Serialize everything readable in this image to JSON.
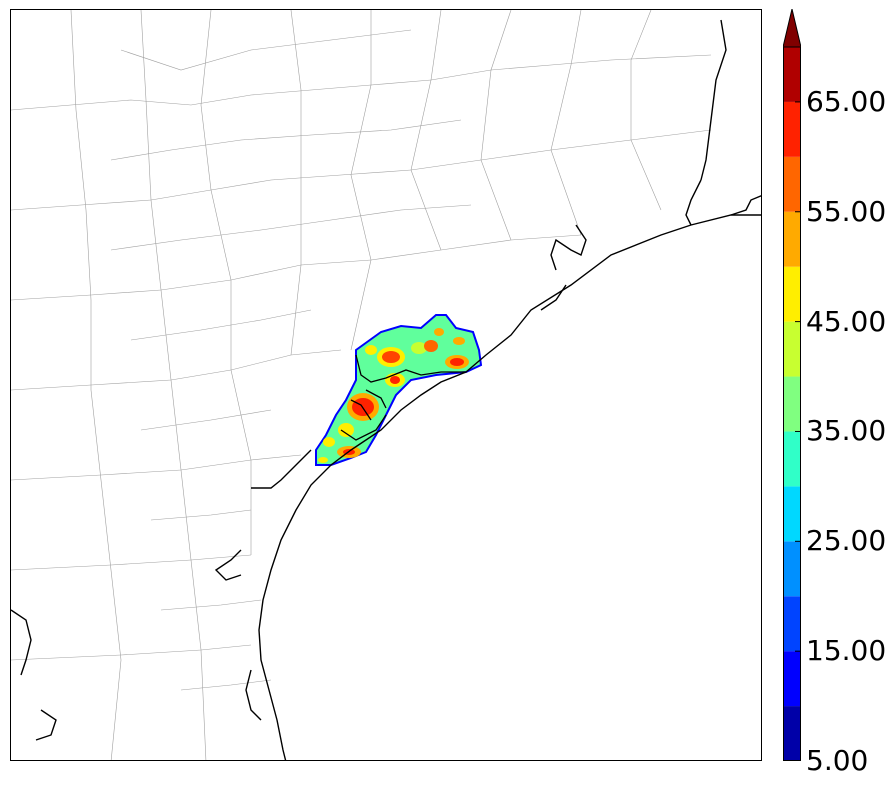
{
  "colorbar": {
    "tick_labels": [
      "5.00",
      "15.00",
      "25.00",
      "35.00",
      "45.00",
      "55.00",
      "65.00"
    ],
    "levels": [
      5,
      10,
      15,
      20,
      25,
      30,
      35,
      40,
      45,
      50,
      55,
      60,
      65,
      70
    ],
    "colors": [
      "#0000a8",
      "#0000ff",
      "#0044ff",
      "#0090ff",
      "#00d8ff",
      "#30ffc8",
      "#80ff80",
      "#c8ff30",
      "#ffee00",
      "#ffaa00",
      "#ff6600",
      "#ff2200",
      "#b00000"
    ],
    "extend_color": "#800000",
    "extend": "max"
  },
  "map": {
    "coastline_color": "#000000",
    "county_border_color": "#a0a0a0"
  }
}
